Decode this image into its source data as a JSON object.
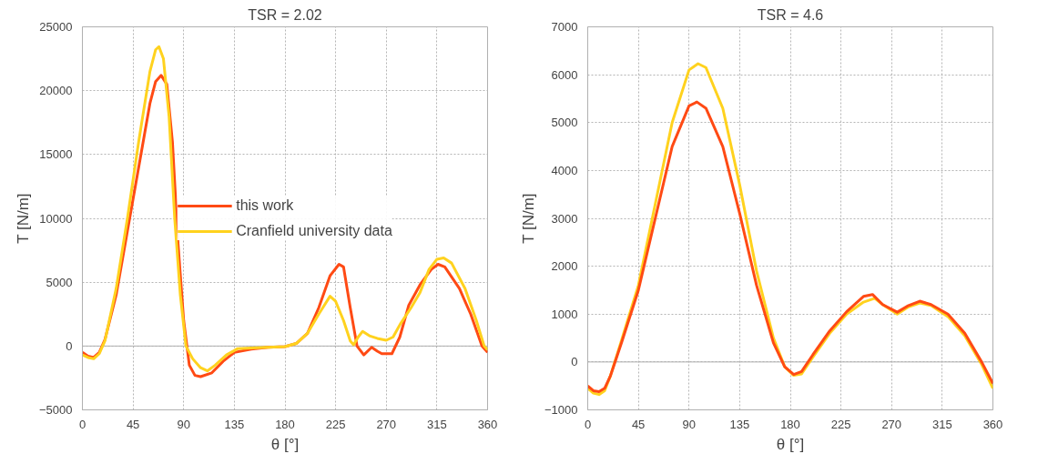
{
  "chart_data": [
    {
      "type": "line",
      "title": "TSR = 2.02",
      "xlabel": "θ [°]",
      "ylabel": "T [N/m]",
      "xlim": [
        0,
        360
      ],
      "ylim": [
        -5000,
        25000
      ],
      "xticks": [
        0,
        45,
        90,
        135,
        180,
        225,
        270,
        315,
        360
      ],
      "yticks": [
        -5000,
        0,
        5000,
        10000,
        15000,
        20000,
        25000
      ],
      "grid": true,
      "legend": "center",
      "line_style": "solid",
      "series": [
        {
          "name": "this work",
          "color": "#ff4a14",
          "x": [
            0,
            5,
            10,
            15,
            20,
            30,
            40,
            50,
            60,
            65,
            70,
            75,
            80,
            85,
            90,
            95,
            100,
            105,
            115,
            125,
            135,
            150,
            165,
            180,
            190,
            200,
            210,
            220,
            228,
            232,
            238,
            244,
            250,
            257,
            262,
            266,
            275,
            282,
            290,
            300,
            310,
            316,
            322,
            335,
            345,
            355,
            360
          ],
          "values": [
            -500,
            -800,
            -900,
            -500,
            500,
            4000,
            9000,
            14000,
            19000,
            20700,
            21200,
            20500,
            16000,
            8000,
            2000,
            -1500,
            -2300,
            -2400,
            -2100,
            -1200,
            -500,
            -250,
            -100,
            -50,
            200,
            1000,
            3000,
            5500,
            6400,
            6200,
            3000,
            0,
            -700,
            -100,
            -400,
            -600,
            -600,
            700,
            3200,
            4800,
            6000,
            6400,
            6200,
            4500,
            2500,
            0,
            -500
          ]
        },
        {
          "name": "Cranfield university data",
          "color": "#ffd21e",
          "x": [
            0,
            5,
            10,
            15,
            20,
            30,
            40,
            50,
            60,
            65,
            68,
            72,
            77,
            82,
            87,
            92,
            98,
            105,
            111,
            118,
            128,
            138,
            150,
            165,
            180,
            190,
            200,
            210,
            220,
            225,
            232,
            238,
            241,
            245,
            249,
            255,
            262,
            270,
            276,
            283,
            292,
            300,
            308,
            315,
            321,
            328,
            340,
            350,
            357,
            360
          ],
          "values": [
            -700,
            -900,
            -1000,
            -600,
            400,
            4500,
            10000,
            16000,
            21500,
            23200,
            23450,
            22500,
            18000,
            10000,
            4000,
            0,
            -1000,
            -1700,
            -1950,
            -1500,
            -700,
            -200,
            -150,
            -100,
            -50,
            200,
            1000,
            2500,
            3900,
            3500,
            2000,
            400,
            100,
            700,
            1150,
            800,
            600,
            450,
            700,
            1800,
            3000,
            4200,
            6000,
            6800,
            6900,
            6500,
            4500,
            2000,
            0,
            -300
          ]
        }
      ]
    },
    {
      "type": "line",
      "title": "TSR = 4.6",
      "xlabel": "θ [°]",
      "ylabel": "T [N/m]",
      "xlim": [
        0,
        360
      ],
      "ylim": [
        -1000,
        7000
      ],
      "xticks": [
        0,
        45,
        90,
        135,
        180,
        225,
        270,
        315,
        360
      ],
      "yticks": [
        -1000,
        0,
        1000,
        2000,
        3000,
        4000,
        5000,
        6000,
        7000
      ],
      "grid": true,
      "line_style": "solid",
      "series": [
        {
          "color": "#ffd21e",
          "x": [
            0,
            5,
            10,
            15,
            20,
            30,
            45,
            60,
            75,
            90,
            98,
            105,
            120,
            135,
            150,
            165,
            175,
            183,
            190,
            200,
            215,
            230,
            245,
            255,
            262,
            275,
            285,
            295,
            305,
            320,
            335,
            350,
            360
          ],
          "values": [
            -550,
            -650,
            -680,
            -600,
            -300,
            450,
            1600,
            3300,
            5000,
            6100,
            6230,
            6150,
            5300,
            3700,
            1900,
            500,
            -100,
            -280,
            -250,
            100,
            600,
            1000,
            1250,
            1330,
            1200,
            1000,
            1150,
            1230,
            1180,
            950,
            550,
            -50,
            -550
          ]
        },
        {
          "color": "#ff4a14",
          "x": [
            0,
            5,
            10,
            15,
            20,
            30,
            45,
            60,
            75,
            90,
            97,
            105,
            120,
            135,
            150,
            165,
            175,
            183,
            190,
            200,
            215,
            230,
            245,
            253,
            262,
            275,
            285,
            295,
            305,
            320,
            335,
            350,
            360
          ],
          "values": [
            -500,
            -600,
            -620,
            -550,
            -300,
            400,
            1500,
            3000,
            4500,
            5350,
            5430,
            5300,
            4500,
            3100,
            1600,
            400,
            -100,
            -260,
            -200,
            150,
            650,
            1050,
            1370,
            1410,
            1200,
            1040,
            1180,
            1270,
            1200,
            1000,
            600,
            0,
            -450
          ]
        }
      ]
    }
  ]
}
